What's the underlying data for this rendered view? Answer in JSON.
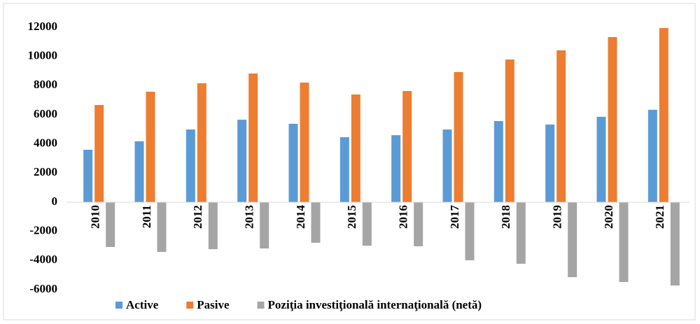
{
  "chart_data": {
    "type": "bar",
    "categories": [
      "2010",
      "2011",
      "2012",
      "2013",
      "2014",
      "2015",
      "2016",
      "2017",
      "2018",
      "2019",
      "2020",
      "2021"
    ],
    "series": [
      {
        "name": "Active",
        "color": "#5b9bd5",
        "values": [
          3600,
          4180,
          4990,
          5660,
          5380,
          4460,
          4600,
          4990,
          5570,
          5330,
          5860,
          6340
        ]
      },
      {
        "name": "Pasive",
        "color": "#ed7d31",
        "values": [
          6670,
          7580,
          8160,
          8830,
          8210,
          7390,
          7630,
          8930,
          9790,
          10420,
          11330,
          11950
        ]
      },
      {
        "name": "Poziţia investiţională internaţională (netă)",
        "color": "#a5a5a5",
        "values": [
          -3070,
          -3410,
          -3220,
          -3170,
          -2780,
          -2980,
          -3020,
          -3980,
          -4220,
          -5140,
          -5470,
          -5710
        ]
      }
    ],
    "ylim": [
      -6000,
      12000
    ],
    "yticks": [
      -6000,
      -4000,
      -2000,
      0,
      2000,
      4000,
      6000,
      8000,
      10000,
      12000
    ],
    "grid": false,
    "legend": "bottom"
  }
}
